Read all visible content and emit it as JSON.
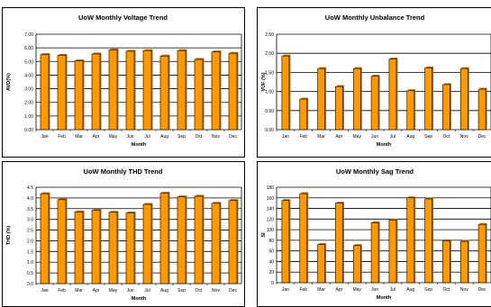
{
  "colors": {
    "bar_fill": "#FF9900",
    "bar_stroke": "#000000",
    "grid": "#000000",
    "panel_border": "#000000"
  },
  "chart_data": [
    {
      "type": "bar",
      "title": "UoW Monthly Voltage Trend",
      "xlabel": "Month",
      "ylabel": "AVD(%)",
      "categories": [
        "Jan",
        "Feb",
        "Mar",
        "Apr",
        "May",
        "Jun",
        "Jul",
        "Aug",
        "Sep",
        "Oct",
        "Nov",
        "Dec"
      ],
      "values": [
        5.5,
        5.45,
        5.05,
        5.55,
        5.85,
        5.75,
        5.8,
        5.4,
        5.8,
        5.15,
        5.7,
        5.6
      ],
      "ylim": [
        0,
        7
      ],
      "yticks": [
        "0.00",
        "1.00",
        "2.00",
        "3.00",
        "4.00",
        "5.00",
        "6.00",
        "7.00"
      ],
      "grid": true
    },
    {
      "type": "bar",
      "title": "UoW Monthly Unbalance Trend",
      "xlabel": "Month",
      "ylabel": "VUF (%)",
      "categories": [
        "Jan",
        "Feb",
        "Mar",
        "Apr",
        "May",
        "Jun",
        "Jul",
        "Aug",
        "Sep",
        "Oct",
        "Nov",
        "Dec"
      ],
      "values": [
        1.93,
        0.8,
        1.6,
        1.13,
        1.6,
        1.4,
        1.85,
        1.02,
        1.62,
        1.18,
        1.6,
        1.06
      ],
      "ylim": [
        0,
        2.5
      ],
      "yticks": [
        "0.00",
        "0.50",
        "1.00",
        "1.50",
        "2.00",
        "2.50"
      ],
      "grid": true
    },
    {
      "type": "bar",
      "title": "UoW Monthly THD Trend",
      "xlabel": "Month",
      "ylabel": "THD (%)",
      "categories": [
        "Jan",
        "Feb",
        "Mar",
        "Apr",
        "May",
        "Jun",
        "Jul",
        "Aug",
        "Sep",
        "Oct",
        "Nov",
        "Dec"
      ],
      "values": [
        4.2,
        3.92,
        3.35,
        3.42,
        3.33,
        3.3,
        3.7,
        4.22,
        4.05,
        4.08,
        3.75,
        3.88
      ],
      "ylim": [
        0,
        4.5
      ],
      "yticks": [
        "0.0",
        "0.5",
        "1.0",
        "1.5",
        "2.0",
        "2.5",
        "3.0",
        "3.5",
        "4.0",
        "4.5"
      ],
      "grid": true
    },
    {
      "type": "bar",
      "title": "UoW Monthly Sag Trend",
      "xlabel": "Month",
      "ylabel": "SI",
      "categories": [
        "Jan",
        "Feb",
        "Mar",
        "Apr",
        "May",
        "Jun",
        "Jul",
        "Aug",
        "Sep",
        "Oct",
        "Nov",
        "Dec"
      ],
      "values": [
        155,
        168,
        72,
        150,
        70,
        113,
        118,
        160,
        158,
        79,
        78,
        110
      ],
      "ylim": [
        0,
        180
      ],
      "yticks": [
        "0",
        "20",
        "40",
        "60",
        "80",
        "100",
        "120",
        "140",
        "160",
        "180"
      ],
      "grid": true
    }
  ]
}
